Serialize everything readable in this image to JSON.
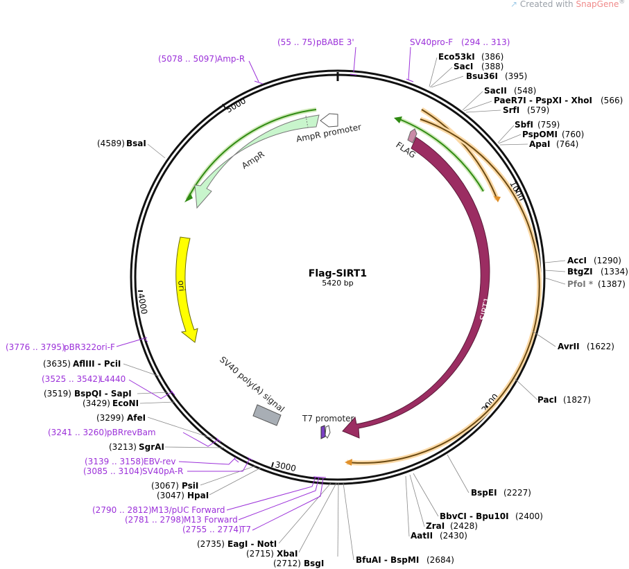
{
  "watermark": {
    "prefix": "Created with ",
    "brand": "SnapGene",
    "mark": "®"
  },
  "plasmid": {
    "name": "Flag-SIRT1",
    "size": "5420 bp"
  },
  "ticks": [
    "1000",
    "2000",
    "3000",
    "4000",
    "5000"
  ],
  "features": {
    "ampr_promoter": "AmpR promoter",
    "ampr": "AmpR",
    "flag": "FLAG",
    "sirt1": "SIRT1",
    "ori": "ori",
    "sv40_polyA": "SV40 poly(A) signal",
    "t7_promoter": "T7 promoter"
  },
  "sites": [
    {
      "pos": "(386)",
      "name": "Eco53kI"
    },
    {
      "pos": "(388)",
      "name": "SacI"
    },
    {
      "pos": "(395)",
      "name": "Bsu36I"
    },
    {
      "pos": "(548)",
      "name": "SacII"
    },
    {
      "pos": "(566)",
      "name": "PaeR7I - PspXI - XhoI"
    },
    {
      "pos": "(579)",
      "name": "SrfI"
    },
    {
      "pos": "(759)",
      "name": "SbfI"
    },
    {
      "pos": "(760)",
      "name": "PspOMI"
    },
    {
      "pos": "(764)",
      "name": "ApaI"
    },
    {
      "pos": "(1290)",
      "name": "AccI"
    },
    {
      "pos": "(1334)",
      "name": "BtgZI"
    },
    {
      "pos": "(1387)",
      "name": "PfoI *"
    },
    {
      "pos": "(1622)",
      "name": "AvrII"
    },
    {
      "pos": "(1827)",
      "name": "PacI"
    },
    {
      "pos": "(2227)",
      "name": "BspEI"
    },
    {
      "pos": "(2400)",
      "name": "BbvCI - Bpu10I"
    },
    {
      "pos": "(2428)",
      "name": "ZraI"
    },
    {
      "pos": "(2430)",
      "name": "AatII"
    },
    {
      "pos": "(2684)",
      "name": "BfuAI - BspMI"
    },
    {
      "pos": "(2712)",
      "name": "BsgI"
    },
    {
      "pos": "(2715)",
      "name": "XbaI"
    },
    {
      "pos": "(2735)",
      "name": "EagI - NotI"
    },
    {
      "pos": "(3047)",
      "name": "HpaI"
    },
    {
      "pos": "(3067)",
      "name": "PsiI"
    },
    {
      "pos": "(3213)",
      "name": "SgrAI"
    },
    {
      "pos": "(3299)",
      "name": "AfeI"
    },
    {
      "pos": "(3429)",
      "name": "EcoNI"
    },
    {
      "pos": "(3519)",
      "name": "BspQI - SapI"
    },
    {
      "pos": "(3635)",
      "name": "AflIII - PciI"
    },
    {
      "pos": "(4589)",
      "name": "BsaI"
    }
  ],
  "primers": [
    {
      "pos": "(5078 .. 5097)",
      "name": "Amp-R"
    },
    {
      "pos": "(55 .. 75)",
      "name": "pBABE 3'"
    },
    {
      "pos": "(294 .. 313)",
      "name": "SV40pro-F"
    },
    {
      "pos": "(3776 .. 3795)",
      "name": "pBR322ori-F"
    },
    {
      "pos": "(3525 .. 3542)",
      "name": "L4440"
    },
    {
      "pos": "(3241 .. 3260)",
      "name": "pBRrevBam"
    },
    {
      "pos": "(3139 .. 3158)",
      "name": "EBV-rev"
    },
    {
      "pos": "(3085 .. 3104)",
      "name": "SV40pA-R"
    },
    {
      "pos": "(2790 .. 2812)",
      "name": "M13/pUC Forward"
    },
    {
      "pos": "(2781 .. 2798)",
      "name": "M13 Forward"
    },
    {
      "pos": "(2755 .. 2774)",
      "name": "T7"
    }
  ],
  "colors": {
    "backbone": "#111111",
    "ampr_fill": "#c8f5cc",
    "flag_fill": "#c98aa6",
    "sirt1_fill": "#9b2d62",
    "ori_fill": "#ffff00",
    "polyA_fill": "#a8aeb5",
    "t7_fill": "#7b3fc4",
    "orf_green": "#2f8a12",
    "orf_orange": "#e0902a",
    "primer_purple": "#9b30d9"
  }
}
